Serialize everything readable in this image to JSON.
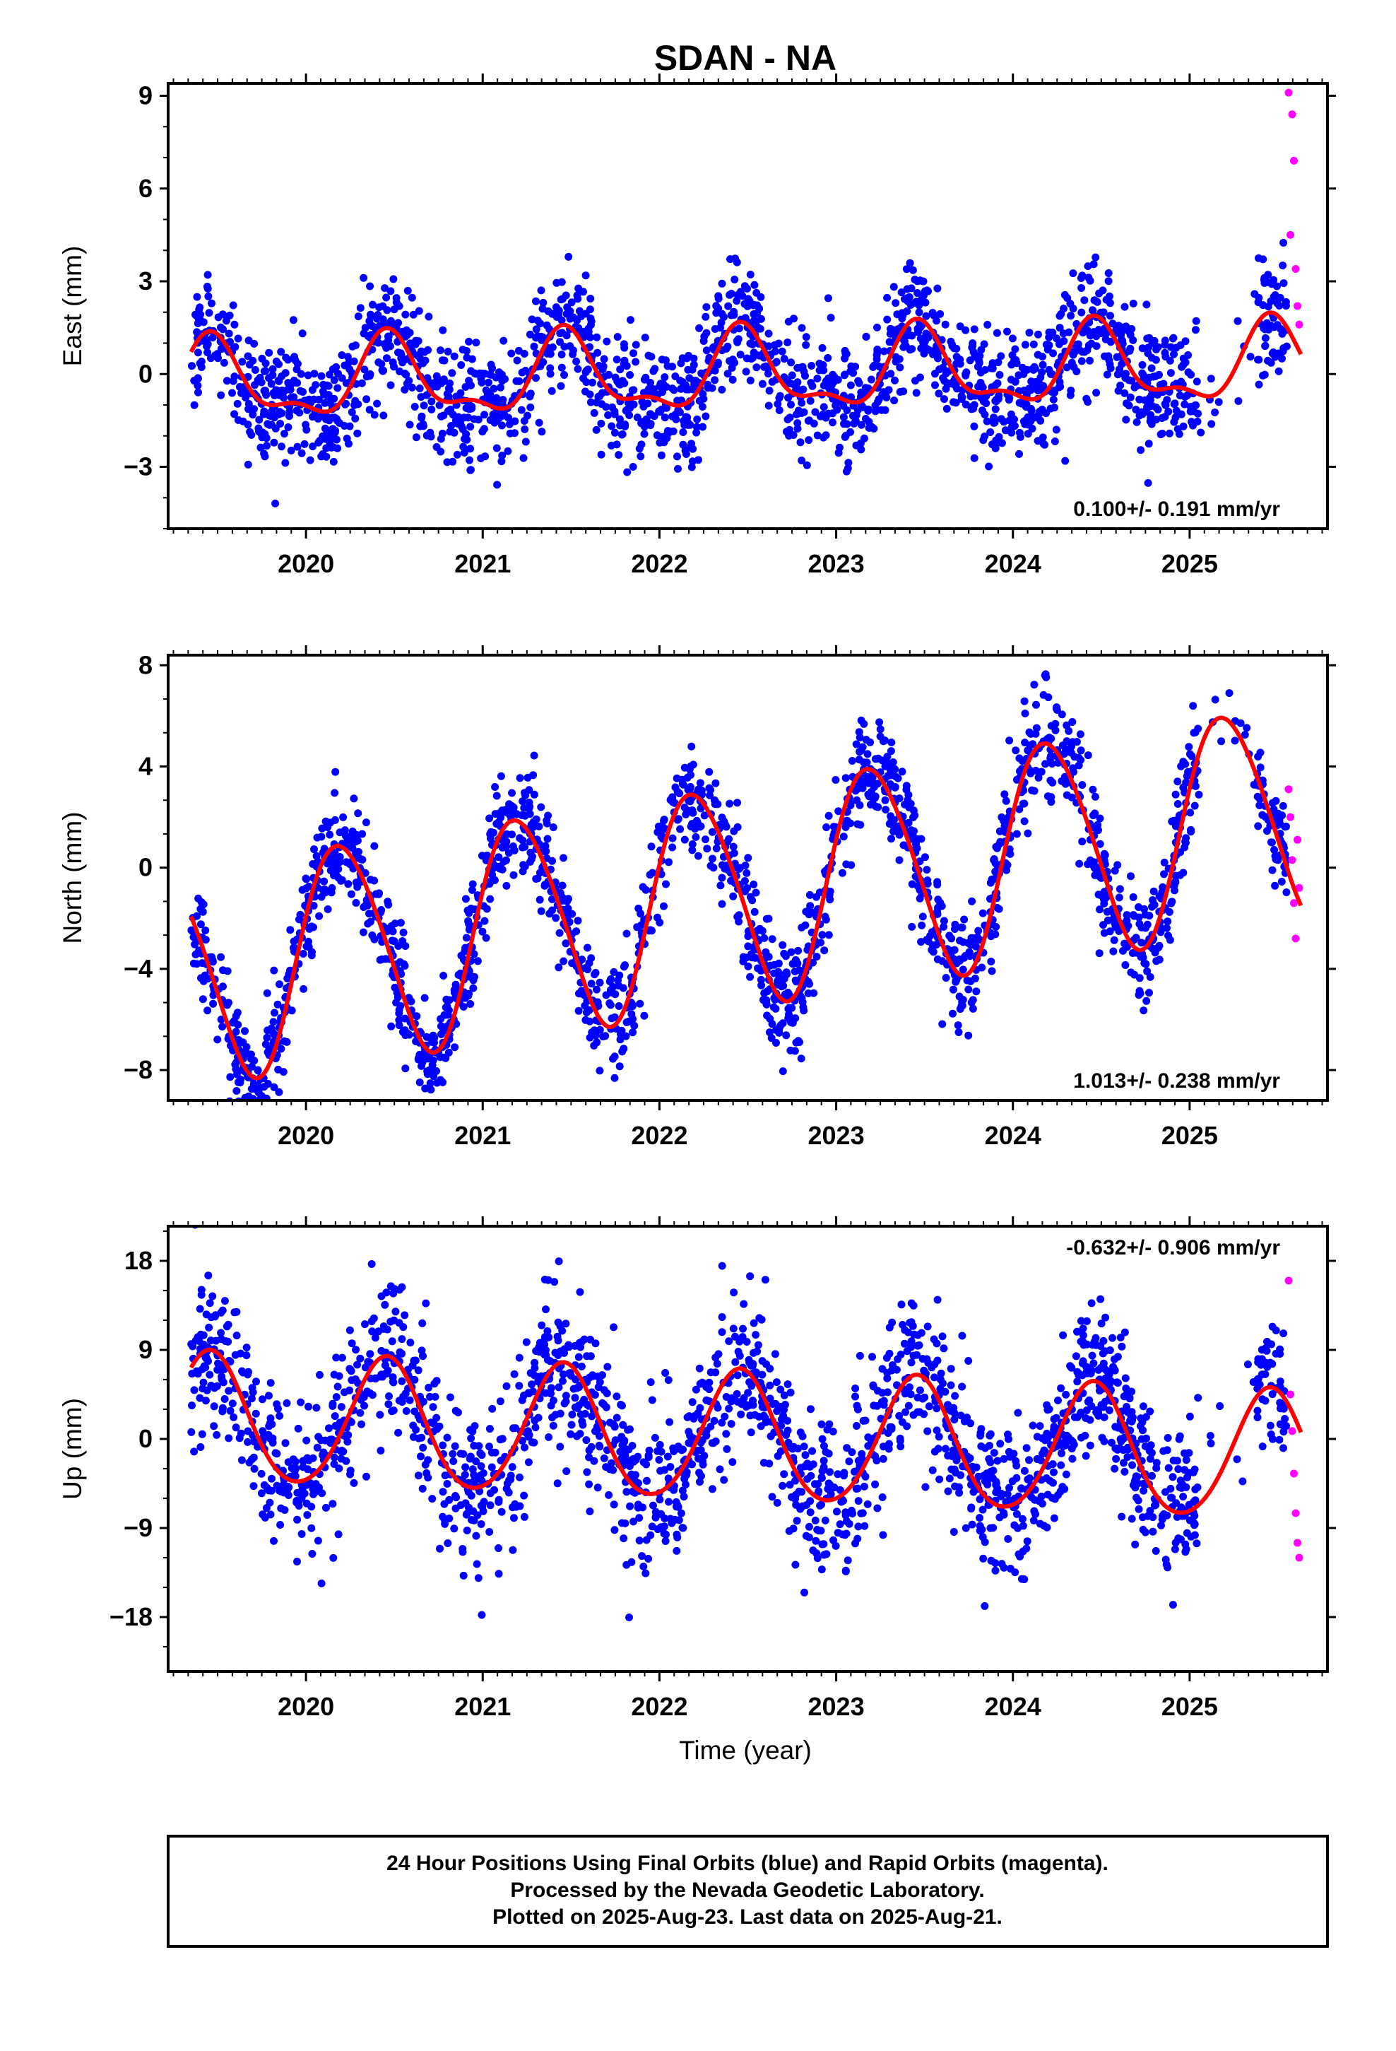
{
  "title": "SDAN - NA",
  "xlabel": "Time (year)",
  "footer": {
    "line1": "24 Hour Positions Using Final Orbits (blue) and Rapid Orbits (magenta).",
    "line2": "Processed by the Nevada Geodetic Laboratory.",
    "line3": "Plotted on 2025-Aug-23. Last data on 2025-Aug-21."
  },
  "colors": {
    "final": "#0000ff",
    "rapid": "#ff00ff",
    "model": "#ff0000"
  },
  "chart_data": [
    {
      "type": "scatter",
      "component": "east",
      "ylabel": "East (mm)",
      "xlim": [
        2019.22,
        2025.78
      ],
      "ylim": [
        -5.0,
        9.4
      ],
      "yticks": [
        -3,
        0,
        3,
        6,
        9
      ],
      "xticks": [
        2020,
        2021,
        2022,
        2023,
        2024,
        2025
      ],
      "rate": "0.100+/- 0.191 mm/yr",
      "rate_position": "bottom-right",
      "model": {
        "offset": 0.0,
        "trend": 0.1,
        "annual_amp": 1.2,
        "annual_phase": 4.9,
        "semi_amp": 0.5,
        "semi_phase": 2.2,
        "noise": 1.0
      },
      "series": [
        {
          "name": "Final Orbits",
          "x_range": [
            2019.35,
            2025.55
          ],
          "count": 2050
        },
        {
          "name": "Rapid Orbits",
          "x": [
            2025.56,
            2025.57,
            2025.58,
            2025.59,
            2025.6,
            2025.61,
            2025.62
          ],
          "y": [
            9.1,
            4.5,
            8.4,
            6.9,
            3.4,
            2.2,
            1.6
          ]
        }
      ]
    },
    {
      "type": "scatter",
      "component": "north",
      "ylabel": "North (mm)",
      "xlim": [
        2019.22,
        2025.78
      ],
      "ylim": [
        -9.2,
        8.4
      ],
      "yticks": [
        -8,
        -4,
        0,
        4,
        8
      ],
      "xticks": [
        2020,
        2021,
        2022,
        2023,
        2024,
        2025
      ],
      "rate": "1.013+/- 0.238 mm/yr",
      "rate_position": "bottom-right",
      "model": {
        "offset": -1.0,
        "trend": 1.013,
        "annual_amp": 4.3,
        "annual_phase": 0.3,
        "semi_amp": 0.4,
        "semi_phase": 1.0,
        "noise": 1.1
      },
      "series": [
        {
          "name": "Final Orbits",
          "x_range": [
            2019.35,
            2025.55
          ],
          "count": 2050
        },
        {
          "name": "Rapid Orbits",
          "x": [
            2025.56,
            2025.57,
            2025.58,
            2025.59,
            2025.6,
            2025.61,
            2025.62
          ],
          "y": [
            3.1,
            2.0,
            0.3,
            -1.4,
            -2.8,
            1.1,
            -0.8
          ]
        }
      ]
    },
    {
      "type": "scatter",
      "component": "up",
      "ylabel": "Up (mm)",
      "xlim": [
        2019.22,
        2025.78
      ],
      "ylim": [
        -23.5,
        21.5
      ],
      "yticks": [
        -18,
        -9,
        0,
        9,
        18
      ],
      "xticks": [
        2020,
        2021,
        2022,
        2023,
        2024,
        2025
      ],
      "rate": "-0.632+/- 0.906 mm/yr",
      "rate_position": "top-right",
      "model": {
        "offset": 0.0,
        "trend": -0.632,
        "annual_amp": 6.5,
        "annual_phase": 5.0,
        "semi_amp": 0.6,
        "semi_phase": 2.0,
        "noise": 4.0
      },
      "series": [
        {
          "name": "Final Orbits",
          "x_range": [
            2019.35,
            2025.55
          ],
          "count": 2050
        },
        {
          "name": "Rapid Orbits",
          "x": [
            2025.56,
            2025.57,
            2025.58,
            2025.59,
            2025.6,
            2025.61,
            2025.62
          ],
          "y": [
            16.0,
            4.5,
            0.8,
            -3.5,
            -7.5,
            -10.5,
            -12.0
          ]
        }
      ]
    }
  ]
}
